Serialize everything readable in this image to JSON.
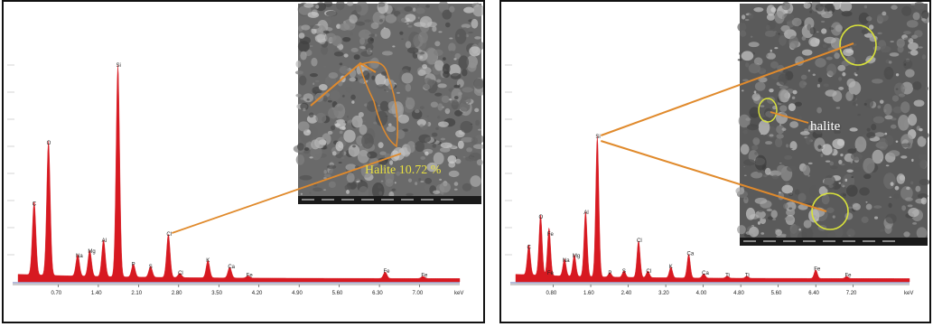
{
  "chart_data": [
    {
      "type": "line",
      "panel": "left",
      "xlabel": "keV",
      "x_ticks": [
        "0.70",
        "1.40",
        "2.10",
        "2.80",
        "3.50",
        "4.20",
        "4.90",
        "5.60",
        "6.30",
        "7.00"
      ],
      "xlim": [
        0,
        7.7
      ],
      "ylim": [
        0,
        1
      ],
      "peaks": [
        {
          "label": "C",
          "x": 0.28,
          "y": 0.34
        },
        {
          "label": "O",
          "x": 0.53,
          "y": 0.62
        },
        {
          "label": "Na",
          "x": 1.04,
          "y": 0.1
        },
        {
          "label": "Mg",
          "x": 1.25,
          "y": 0.12
        },
        {
          "label": "Al",
          "x": 1.49,
          "y": 0.17
        },
        {
          "label": "Si",
          "x": 1.74,
          "y": 0.98
        },
        {
          "label": "P",
          "x": 2.01,
          "y": 0.06
        },
        {
          "label": "S",
          "x": 2.31,
          "y": 0.05
        },
        {
          "label": "Cl",
          "x": 2.62,
          "y": 0.2
        },
        {
          "label": "Cl",
          "x": 2.82,
          "y": 0.02
        },
        {
          "label": "K",
          "x": 3.31,
          "y": 0.08
        },
        {
          "label": "Ca",
          "x": 3.69,
          "y": 0.05
        },
        {
          "label": "Fe",
          "x": 4.01,
          "y": 0.01
        },
        {
          "label": "Fe",
          "x": 6.4,
          "y": 0.03
        },
        {
          "label": "Fe",
          "x": 7.06,
          "y": 0.01
        }
      ],
      "annotation": "Halite 10.72 %"
    },
    {
      "type": "line",
      "panel": "right",
      "xlabel": "keV",
      "x_ticks": [
        "0.80",
        "1.60",
        "2.40",
        "3.20",
        "4.00",
        "4.80",
        "5.60",
        "6.40",
        "7.20"
      ],
      "xlim": [
        0,
        8.4
      ],
      "ylim": [
        0,
        1
      ],
      "peaks": [
        {
          "label": "C",
          "x": 0.28,
          "y": 0.14
        },
        {
          "label": "O",
          "x": 0.53,
          "y": 0.28
        },
        {
          "label": "Fe",
          "x": 0.71,
          "y": 0.2
        },
        {
          "label": "Fe",
          "x": 0.71,
          "y": 0.02
        },
        {
          "label": "Na",
          "x": 1.04,
          "y": 0.08
        },
        {
          "label": "Mg",
          "x": 1.25,
          "y": 0.1
        },
        {
          "label": "Al",
          "x": 1.49,
          "y": 0.3
        },
        {
          "label": "Si",
          "x": 1.74,
          "y": 0.65
        },
        {
          "label": "P",
          "x": 2.01,
          "y": 0.02
        },
        {
          "label": "S",
          "x": 2.31,
          "y": 0.03
        },
        {
          "label": "Cl",
          "x": 2.62,
          "y": 0.17
        },
        {
          "label": "Cl",
          "x": 2.82,
          "y": 0.03
        },
        {
          "label": "K",
          "x": 3.31,
          "y": 0.05
        },
        {
          "label": "Ca",
          "x": 3.69,
          "y": 0.11
        },
        {
          "label": "Ca",
          "x": 4.01,
          "y": 0.02
        },
        {
          "label": "Ti",
          "x": 4.51,
          "y": 0.01
        },
        {
          "label": "Ti",
          "x": 4.93,
          "y": 0.01
        },
        {
          "label": "Fe",
          "x": 6.4,
          "y": 0.04
        },
        {
          "label": "Fe",
          "x": 7.06,
          "y": 0.01
        }
      ],
      "annotation": "halite"
    }
  ],
  "colors": {
    "spectrum_fill": "#d71921",
    "connector": "#e08a2c",
    "circle": "#d9e23a",
    "left_caption": "#e8e040",
    "right_caption": "#ffffff"
  }
}
